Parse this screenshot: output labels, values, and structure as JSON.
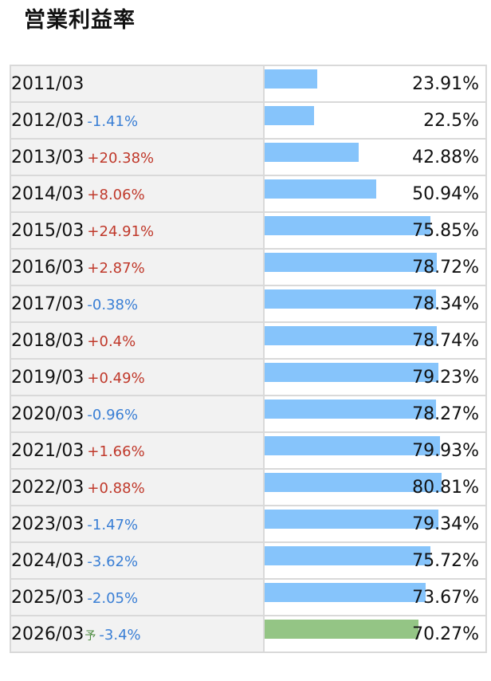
{
  "title": "営業利益率",
  "colors": {
    "bar": "#86c4fb",
    "forecast_bar": "#94c585",
    "increase": "#c0392b",
    "decrease": "#3a7fd5"
  },
  "forecast_mark": "予",
  "chart_data": {
    "type": "bar",
    "title": "営業利益率",
    "unit": "%",
    "orientation": "horizontal",
    "rows": [
      {
        "period": "2011/03",
        "change": "",
        "value": 23.91,
        "value_label": "23.91%"
      },
      {
        "period": "2012/03",
        "change": "-1.41%",
        "value": 22.5,
        "value_label": "22.5%"
      },
      {
        "period": "2013/03",
        "change": "+20.38%",
        "value": 42.88,
        "value_label": "42.88%"
      },
      {
        "period": "2014/03",
        "change": "+8.06%",
        "value": 50.94,
        "value_label": "50.94%"
      },
      {
        "period": "2015/03",
        "change": "+24.91%",
        "value": 75.85,
        "value_label": "75.85%"
      },
      {
        "period": "2016/03",
        "change": "+2.87%",
        "value": 78.72,
        "value_label": "78.72%"
      },
      {
        "period": "2017/03",
        "change": "-0.38%",
        "value": 78.34,
        "value_label": "78.34%"
      },
      {
        "period": "2018/03",
        "change": "+0.4%",
        "value": 78.74,
        "value_label": "78.74%"
      },
      {
        "period": "2019/03",
        "change": "+0.49%",
        "value": 79.23,
        "value_label": "79.23%"
      },
      {
        "period": "2020/03",
        "change": "-0.96%",
        "value": 78.27,
        "value_label": "78.27%"
      },
      {
        "period": "2021/03",
        "change": "+1.66%",
        "value": 79.93,
        "value_label": "79.93%"
      },
      {
        "period": "2022/03",
        "change": "+0.88%",
        "value": 80.81,
        "value_label": "80.81%"
      },
      {
        "period": "2023/03",
        "change": "-1.47%",
        "value": 79.34,
        "value_label": "79.34%"
      },
      {
        "period": "2024/03",
        "change": "-3.62%",
        "value": 75.72,
        "value_label": "75.72%"
      },
      {
        "period": "2025/03",
        "change": "-2.05%",
        "value": 73.67,
        "value_label": "73.67%"
      },
      {
        "period": "2026/03",
        "change": "-3.4%",
        "value": 70.27,
        "value_label": "70.27%",
        "forecast": true
      }
    ],
    "max_value": 80.81
  }
}
